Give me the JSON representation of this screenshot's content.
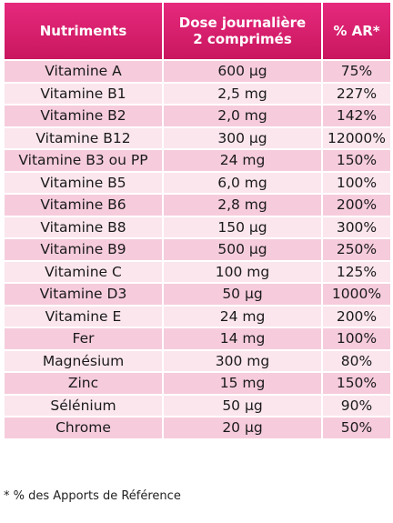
{
  "table": {
    "headers": [
      {
        "line1": "Nutriments",
        "line2": ""
      },
      {
        "line1": "Dose journalière",
        "line2": "2 comprimés"
      },
      {
        "line1": "% AR*",
        "line2": ""
      }
    ],
    "rows": [
      {
        "nutrient": "Vitamine A",
        "dose": "600 µg",
        "ar": "75%"
      },
      {
        "nutrient": "Vitamine B1",
        "dose": "2,5 mg",
        "ar": "227%"
      },
      {
        "nutrient": "Vitamine B2",
        "dose": "2,0 mg",
        "ar": "142%"
      },
      {
        "nutrient": "Vitamine  B12",
        "dose": "300 µg",
        "ar": "12000%"
      },
      {
        "nutrient": "Vitamine B3 ou PP",
        "dose": "24 mg",
        "ar": "150%"
      },
      {
        "nutrient": "Vitamine B5",
        "dose": "6,0 mg",
        "ar": "100%"
      },
      {
        "nutrient": "Vitamine B6",
        "dose": "2,8 mg",
        "ar": "200%"
      },
      {
        "nutrient": "Vitamine B8",
        "dose": "150 µg",
        "ar": "300%"
      },
      {
        "nutrient": "Vitamine B9",
        "dose": "500 µg",
        "ar": "250%"
      },
      {
        "nutrient": "Vitamine C",
        "dose": "100 mg",
        "ar": "125%"
      },
      {
        "nutrient": "Vitamine D3",
        "dose": "50 µg",
        "ar": "1000%"
      },
      {
        "nutrient": "Vitamine E",
        "dose": "24 mg",
        "ar": "200%"
      },
      {
        "nutrient": "Fer",
        "dose": "14 mg",
        "ar": "100%"
      },
      {
        "nutrient": "Magnésium",
        "dose": "300 mg",
        "ar": "80%"
      },
      {
        "nutrient": "Zinc",
        "dose": "15 mg",
        "ar": "150%"
      },
      {
        "nutrient": "Sélénium",
        "dose": "50 µg",
        "ar": "90%"
      },
      {
        "nutrient": "Chrome",
        "dose": "20 µg",
        "ar": "50%"
      }
    ]
  },
  "footnote": "* % des Apports de Référence",
  "colors": {
    "header": "#d91f6e",
    "row_dark": "#f6ccdc",
    "row_light": "#fbe6ee",
    "header_text": "#ffffff"
  }
}
